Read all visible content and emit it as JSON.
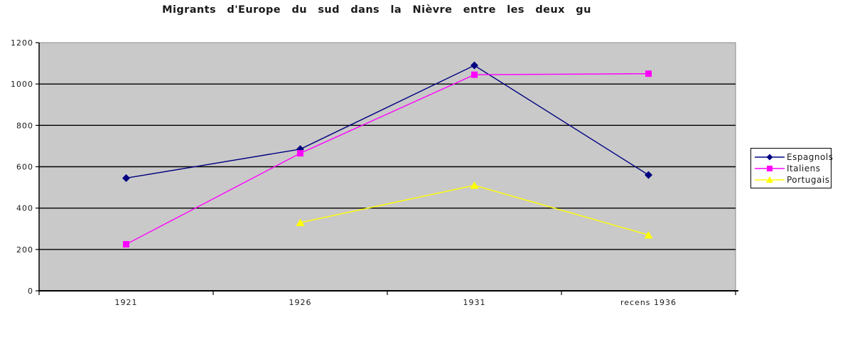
{
  "page": {
    "background": "#ffffff"
  },
  "chart_data": {
    "type": "line",
    "title": "Migrants d'Europe du sud dans la Nièvre entre les deux gu",
    "categories": [
      "1921",
      "1926",
      "1931",
      "recens 1936"
    ],
    "series": [
      {
        "name": "Espagnols",
        "color": "#000080",
        "marker": "diamond",
        "values": [
          545,
          685,
          1090,
          560
        ]
      },
      {
        "name": "Italiens",
        "color": "#FF00FF",
        "marker": "square",
        "values": [
          225,
          665,
          1045,
          1050
        ]
      },
      {
        "name": "Portugais",
        "color": "#FFFF00",
        "marker": "triangle",
        "values": [
          null,
          330,
          510,
          270
        ]
      }
    ],
    "xlabel": "",
    "ylabel": "",
    "ylim": [
      0,
      1200
    ],
    "ytick_step": 200,
    "yticks": [
      0,
      200,
      400,
      600,
      800,
      1000,
      1200
    ],
    "grid": "horizontal",
    "gridline_color": "#000000",
    "plot_bg": "#C9C9C9",
    "plot_border": "#8a8a8a",
    "axis_color": "#000000",
    "legend_position": "right",
    "legend_border": "#000000",
    "legend_bg": "#FFFFFF"
  }
}
